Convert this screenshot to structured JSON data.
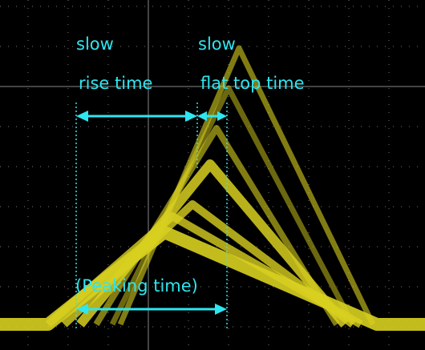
{
  "annotations": {
    "slow_rise": "slow",
    "rise_time": "rise time",
    "slow_flat": "slow",
    "flat_top_time": "flat top time",
    "peaking_time": "(Peaking time)"
  }
}
